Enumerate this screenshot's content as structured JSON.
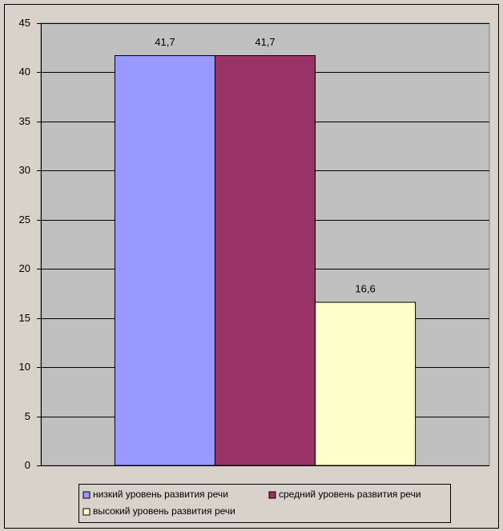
{
  "chart_data": {
    "type": "bar",
    "categories": [
      null
    ],
    "series": [
      {
        "name": "низкий уровень развития речи",
        "color": "#9999ff",
        "values": [
          41.7
        ],
        "value_labels": [
          "41,7"
        ]
      },
      {
        "name": "средний уровень развития речи",
        "color": "#993366",
        "values": [
          41.7
        ],
        "value_labels": [
          "41,7"
        ]
      },
      {
        "name": "высокий уровень развития речи",
        "color": "#ffffcc",
        "values": [
          16.6
        ],
        "value_labels": [
          "16,6"
        ]
      }
    ],
    "ylim": [
      0,
      45
    ],
    "yticks": [
      0,
      5,
      10,
      15,
      20,
      25,
      30,
      35,
      40,
      45
    ],
    "grid": true,
    "legend": "bottom"
  }
}
